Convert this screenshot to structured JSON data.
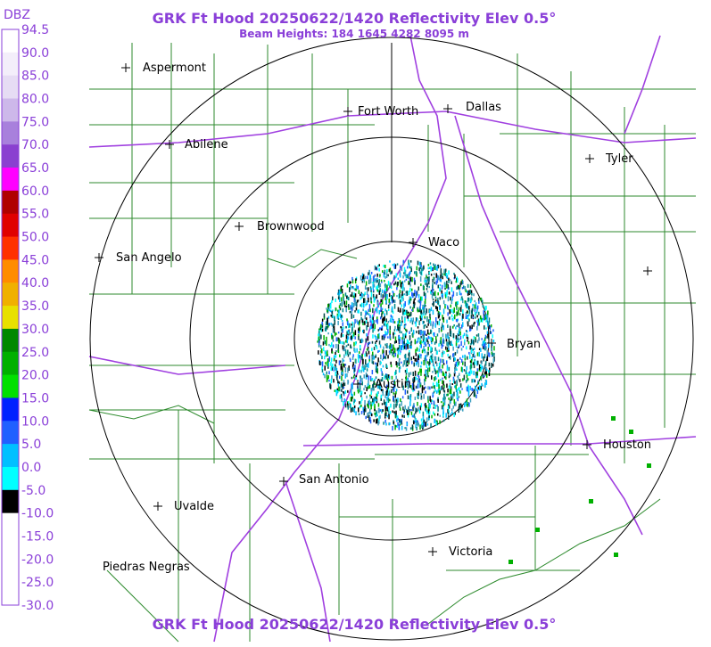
{
  "header": {
    "title": "GRK Ft Hood 20250622/1420 Reflectivity Elev 0.5°",
    "subtitle": "Beam Heights: 184 1645 4282 8095 m"
  },
  "footer": {
    "title": "GRK Ft Hood 20250622/1420 Reflectivity Elev 0.5°"
  },
  "legend": {
    "title": "DBZ",
    "labels": [
      "94.5",
      "90.0",
      "85.0",
      "80.0",
      "75.0",
      "70.0",
      "65.0",
      "60.0",
      "55.0",
      "50.0",
      "45.0",
      "40.0",
      "35.0",
      "30.0",
      "25.0",
      "20.0",
      "15.0",
      "10.0",
      "5.0",
      "0.0",
      "-5.0",
      "-10.0",
      "-15.0",
      "-20.0",
      "-25.0",
      "-30.0"
    ],
    "colors": [
      "#ffffff",
      "#f3eefa",
      "#e6dcf4",
      "#cdb8ea",
      "#a880dc",
      "#8a40d0",
      "#ff00ff",
      "#b00000",
      "#e00000",
      "#ff3000",
      "#ff8c00",
      "#f0b000",
      "#e8e000",
      "#008800",
      "#00b000",
      "#00e000",
      "#0020ff",
      "#2060ff",
      "#00c0ff",
      "#00ffff",
      "#000000",
      "#ffffff",
      "#ffffff",
      "#ffffff",
      "#ffffff"
    ]
  },
  "cities": [
    "Aspermont",
    "Fort Worth",
    "Dallas",
    "Abilene",
    "Tyler",
    "Brownwood",
    "Waco",
    "San Angelo",
    "Bryan",
    "Austin",
    "Houston",
    "San Antonio",
    "Uvalde",
    "Victoria",
    "Piedras Negras"
  ]
}
